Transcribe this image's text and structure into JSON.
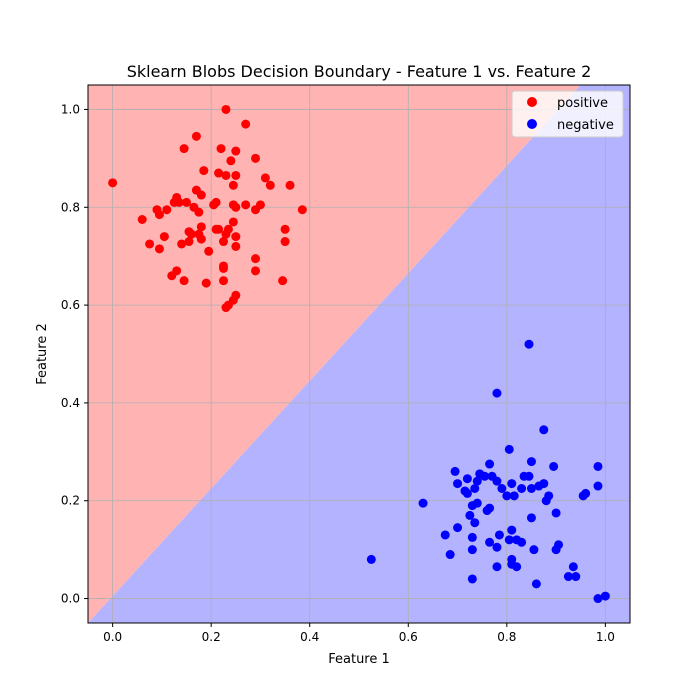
{
  "chart_data": {
    "type": "scatter",
    "title": "Sklearn Blobs Decision Boundary - Feature 1 vs. Feature 2",
    "xlabel": "Feature 1",
    "ylabel": "Feature 2",
    "xlim": [
      -0.05,
      1.05
    ],
    "ylim": [
      -0.05,
      1.05
    ],
    "xticks": [
      0.0,
      0.2,
      0.4,
      0.6,
      0.8,
      1.0
    ],
    "yticks": [
      0.0,
      0.2,
      0.4,
      0.6,
      0.8,
      1.0
    ],
    "xtick_labels": [
      "0.0",
      "0.2",
      "0.4",
      "0.6",
      "0.8",
      "1.0"
    ],
    "ytick_labels": [
      "0.0",
      "0.2",
      "0.4",
      "0.6",
      "0.8",
      "1.0"
    ],
    "grid": true,
    "legend_position": "top-right",
    "regions": {
      "positive_color": "#ffb3b3",
      "negative_color": "#b3b3ff",
      "boundary": [
        [
          -0.05,
          -0.05
        ],
        [
          0.95,
          1.05
        ]
      ]
    },
    "series": [
      {
        "name": "positive",
        "color": "#ff0000",
        "points": [
          [
            0.0,
            0.85
          ],
          [
            0.23,
            1.0
          ],
          [
            0.27,
            0.97
          ],
          [
            0.17,
            0.945
          ],
          [
            0.145,
            0.92
          ],
          [
            0.22,
            0.92
          ],
          [
            0.25,
            0.915
          ],
          [
            0.29,
            0.9
          ],
          [
            0.24,
            0.895
          ],
          [
            0.185,
            0.875
          ],
          [
            0.215,
            0.87
          ],
          [
            0.23,
            0.865
          ],
          [
            0.25,
            0.865
          ],
          [
            0.31,
            0.86
          ],
          [
            0.32,
            0.845
          ],
          [
            0.36,
            0.845
          ],
          [
            0.245,
            0.845
          ],
          [
            0.17,
            0.835
          ],
          [
            0.18,
            0.825
          ],
          [
            0.13,
            0.82
          ],
          [
            0.125,
            0.81
          ],
          [
            0.135,
            0.81
          ],
          [
            0.15,
            0.81
          ],
          [
            0.21,
            0.81
          ],
          [
            0.205,
            0.805
          ],
          [
            0.245,
            0.805
          ],
          [
            0.27,
            0.805
          ],
          [
            0.3,
            0.805
          ],
          [
            0.25,
            0.8
          ],
          [
            0.09,
            0.795
          ],
          [
            0.11,
            0.795
          ],
          [
            0.165,
            0.8
          ],
          [
            0.29,
            0.795
          ],
          [
            0.385,
            0.795
          ],
          [
            0.175,
            0.79
          ],
          [
            0.095,
            0.785
          ],
          [
            0.06,
            0.775
          ],
          [
            0.245,
            0.77
          ],
          [
            0.18,
            0.76
          ],
          [
            0.21,
            0.755
          ],
          [
            0.215,
            0.755
          ],
          [
            0.235,
            0.755
          ],
          [
            0.35,
            0.755
          ],
          [
            0.155,
            0.75
          ],
          [
            0.16,
            0.745
          ],
          [
            0.175,
            0.745
          ],
          [
            0.23,
            0.745
          ],
          [
            0.105,
            0.74
          ],
          [
            0.25,
            0.74
          ],
          [
            0.18,
            0.735
          ],
          [
            0.155,
            0.73
          ],
          [
            0.225,
            0.73
          ],
          [
            0.35,
            0.73
          ],
          [
            0.075,
            0.725
          ],
          [
            0.14,
            0.725
          ],
          [
            0.25,
            0.72
          ],
          [
            0.095,
            0.715
          ],
          [
            0.195,
            0.71
          ],
          [
            0.29,
            0.695
          ],
          [
            0.225,
            0.68
          ],
          [
            0.225,
            0.675
          ],
          [
            0.13,
            0.67
          ],
          [
            0.29,
            0.67
          ],
          [
            0.12,
            0.66
          ],
          [
            0.145,
            0.65
          ],
          [
            0.225,
            0.65
          ],
          [
            0.345,
            0.65
          ],
          [
            0.19,
            0.645
          ],
          [
            0.25,
            0.62
          ],
          [
            0.245,
            0.61
          ],
          [
            0.235,
            0.6
          ],
          [
            0.23,
            0.595
          ]
        ]
      },
      {
        "name": "negative",
        "color": "#0000ff",
        "points": [
          [
            0.845,
            0.52
          ],
          [
            0.78,
            0.42
          ],
          [
            0.875,
            0.345
          ],
          [
            0.805,
            0.305
          ],
          [
            0.85,
            0.28
          ],
          [
            0.765,
            0.275
          ],
          [
            0.895,
            0.27
          ],
          [
            0.985,
            0.27
          ],
          [
            0.695,
            0.26
          ],
          [
            0.745,
            0.255
          ],
          [
            0.755,
            0.25
          ],
          [
            0.77,
            0.25
          ],
          [
            0.835,
            0.25
          ],
          [
            0.845,
            0.25
          ],
          [
            0.72,
            0.245
          ],
          [
            0.74,
            0.24
          ],
          [
            0.78,
            0.24
          ],
          [
            0.81,
            0.235
          ],
          [
            0.875,
            0.235
          ],
          [
            0.865,
            0.23
          ],
          [
            0.7,
            0.235
          ],
          [
            0.985,
            0.23
          ],
          [
            0.735,
            0.225
          ],
          [
            0.79,
            0.225
          ],
          [
            0.85,
            0.225
          ],
          [
            0.83,
            0.225
          ],
          [
            0.715,
            0.22
          ],
          [
            0.72,
            0.215
          ],
          [
            0.815,
            0.21
          ],
          [
            0.8,
            0.21
          ],
          [
            0.96,
            0.215
          ],
          [
            0.955,
            0.21
          ],
          [
            0.885,
            0.21
          ],
          [
            0.88,
            0.2
          ],
          [
            0.63,
            0.195
          ],
          [
            0.74,
            0.195
          ],
          [
            0.73,
            0.19
          ],
          [
            0.765,
            0.185
          ],
          [
            0.76,
            0.18
          ],
          [
            0.9,
            0.175
          ],
          [
            0.725,
            0.17
          ],
          [
            0.85,
            0.165
          ],
          [
            0.735,
            0.155
          ],
          [
            0.7,
            0.145
          ],
          [
            0.81,
            0.14
          ],
          [
            0.785,
            0.13
          ],
          [
            0.675,
            0.13
          ],
          [
            0.73,
            0.125
          ],
          [
            0.805,
            0.12
          ],
          [
            0.82,
            0.12
          ],
          [
            0.765,
            0.115
          ],
          [
            0.83,
            0.115
          ],
          [
            0.78,
            0.105
          ],
          [
            0.905,
            0.11
          ],
          [
            0.9,
            0.1
          ],
          [
            0.73,
            0.1
          ],
          [
            0.855,
            0.1
          ],
          [
            0.685,
            0.09
          ],
          [
            0.525,
            0.08
          ],
          [
            0.81,
            0.08
          ],
          [
            0.81,
            0.07
          ],
          [
            0.78,
            0.065
          ],
          [
            0.82,
            0.065
          ],
          [
            0.935,
            0.065
          ],
          [
            0.925,
            0.045
          ],
          [
            0.94,
            0.045
          ],
          [
            0.73,
            0.04
          ],
          [
            0.86,
            0.03
          ],
          [
            1.0,
            0.005
          ],
          [
            0.985,
            0.0
          ]
        ]
      }
    ]
  }
}
